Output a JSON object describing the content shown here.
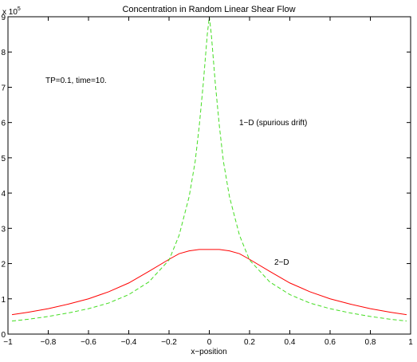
{
  "chart_data": {
    "type": "line",
    "title": "Concentration in Random Linear Shear Flow",
    "xlabel": "x−position",
    "ylabel": "",
    "xlim": [
      -1,
      1
    ],
    "ylim": [
      0,
      9
    ],
    "y_scale_multiplier": "x 10",
    "y_scale_exponent": "5",
    "grid": false,
    "x_tick_labels": [
      "−1",
      "−0.8",
      "−0.6",
      "−0.4",
      "−0.2",
      "0",
      "0.2",
      "0.4",
      "0.6",
      "0.8",
      "1"
    ],
    "y_tick_labels": [
      "0",
      "1",
      "2",
      "3",
      "4",
      "5",
      "6",
      "7",
      "8",
      "9"
    ],
    "annotations": {
      "params": "TP=0.1, time=10.",
      "label_1d": "1−D (spurious drift)",
      "label_2d": "2−D"
    },
    "series": [
      {
        "label_key": "label_2d",
        "color": "#ff0000",
        "dash": "solid",
        "x": [
          -0.98,
          -0.9,
          -0.8,
          -0.7,
          -0.6,
          -0.5,
          -0.4,
          -0.3,
          -0.2,
          -0.15,
          -0.1,
          -0.05,
          0,
          0.05,
          0.1,
          0.15,
          0.2,
          0.3,
          0.4,
          0.5,
          0.6,
          0.7,
          0.8,
          0.9,
          0.98
        ],
        "y": [
          0.55,
          0.62,
          0.72,
          0.85,
          1.0,
          1.2,
          1.45,
          1.78,
          2.12,
          2.28,
          2.36,
          2.4,
          2.4,
          2.4,
          2.36,
          2.28,
          2.12,
          1.78,
          1.45,
          1.2,
          1.0,
          0.85,
          0.72,
          0.62,
          0.55
        ]
      },
      {
        "label_key": "label_1d",
        "color": "#44dd22",
        "dash": "dashed",
        "x": [
          -0.98,
          -0.9,
          -0.8,
          -0.7,
          -0.6,
          -0.5,
          -0.4,
          -0.3,
          -0.2,
          -0.15,
          -0.1,
          -0.07,
          -0.05,
          -0.03,
          -0.02,
          -0.01,
          0,
          0.01,
          0.02,
          0.03,
          0.05,
          0.07,
          0.1,
          0.15,
          0.2,
          0.3,
          0.4,
          0.5,
          0.6,
          0.7,
          0.8,
          0.9,
          0.98
        ],
        "y": [
          0.37,
          0.42,
          0.5,
          0.6,
          0.72,
          0.88,
          1.12,
          1.48,
          2.1,
          2.8,
          3.9,
          4.9,
          5.9,
          7.1,
          7.8,
          8.5,
          9.0,
          8.5,
          7.8,
          7.1,
          5.9,
          4.9,
          3.9,
          2.8,
          2.1,
          1.48,
          1.12,
          0.88,
          0.72,
          0.6,
          0.5,
          0.42,
          0.37
        ]
      }
    ]
  }
}
